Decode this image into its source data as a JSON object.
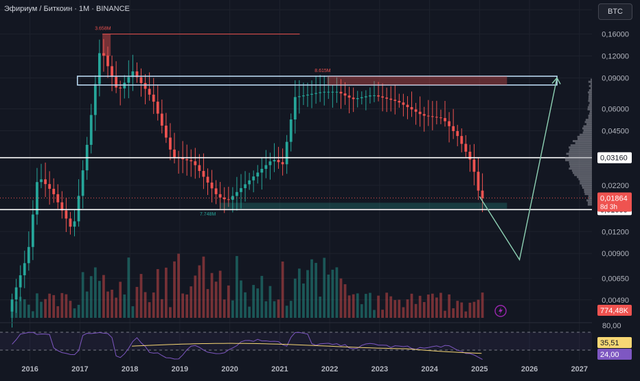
{
  "header": {
    "title": "Эфириум / Биткоин · 1M · BINANCE",
    "currency_button": "BTC"
  },
  "colors": {
    "bg": "#131722",
    "up": "#26a69a",
    "down": "#ef5350",
    "grid": "#1e222d",
    "text": "#b2b5be",
    "rsi": "#7e57c2",
    "rsi_ma": "#f7d774",
    "projection": "#8ed1b4",
    "level": "#ffffff"
  },
  "price_axis": {
    "ticks": [
      "0,22000",
      "0,16000",
      "0,12000",
      "0,09000",
      "0,06000",
      "0,04500",
      "0,03160",
      "0,02200",
      "0,01864",
      "0,01600",
      "0,01200",
      "0,00900",
      "0,00650",
      "0,00490"
    ]
  },
  "time_axis": {
    "ticks": [
      "2016",
      "2017",
      "2018",
      "2019",
      "2020",
      "2021",
      "2022",
      "2023",
      "2024",
      "2025",
      "2026",
      "2027"
    ]
  },
  "badges": {
    "level_upper": "0,03160",
    "current_price": "0,01864",
    "countdown": "8d 3h",
    "level_lower": "0,01600",
    "volume": "774,48K",
    "rsi_ma": "35,51",
    "rsi": "24,00",
    "rsi_80": "80,00"
  },
  "annotations": {
    "high_volume_label": "3.658M",
    "zone_volume_label": "8.615M",
    "low_volume_label": "7.748M"
  },
  "chart_data": {
    "type": "candlestick",
    "title": "Эфириум / Биткоин · 1M · BINANCE",
    "y_scale": "log",
    "ylim": [
      0.0038,
      0.25
    ],
    "xlim": [
      2015.4,
      2027.25
    ],
    "horizontal_levels": [
      0.0316,
      0.016
    ],
    "resistance_zone": [
      0.082,
      0.092
    ],
    "projection_path": [
      [
        2025.0,
        0.019
      ],
      [
        2025.8,
        0.0083
      ],
      [
        2026.55,
        0.09
      ]
    ],
    "trend_wave": [
      [
        2015.6,
        0.0042
      ],
      [
        2016.0,
        0.009
      ],
      [
        2016.2,
        0.025
      ],
      [
        2016.5,
        0.02
      ],
      [
        2016.9,
        0.012
      ],
      [
        2017.2,
        0.04
      ],
      [
        2017.45,
        0.135
      ],
      [
        2017.8,
        0.075
      ],
      [
        2018.1,
        0.098
      ],
      [
        2018.5,
        0.068
      ],
      [
        2018.9,
        0.032
      ],
      [
        2019.3,
        0.03
      ],
      [
        2019.8,
        0.019
      ],
      [
        2020.0,
        0.018
      ],
      [
        2020.6,
        0.026
      ],
      [
        2020.9,
        0.031
      ],
      [
        2021.1,
        0.029
      ],
      [
        2021.35,
        0.07
      ],
      [
        2021.9,
        0.075
      ],
      [
        2022.2,
        0.075
      ],
      [
        2022.5,
        0.068
      ],
      [
        2022.9,
        0.072
      ],
      [
        2023.4,
        0.066
      ],
      [
        2023.9,
        0.055
      ],
      [
        2024.3,
        0.053
      ],
      [
        2024.6,
        0.042
      ],
      [
        2024.9,
        0.029
      ],
      [
        2025.05,
        0.0186
      ]
    ],
    "rsi_levels": [
      80,
      70,
      30,
      24
    ]
  }
}
